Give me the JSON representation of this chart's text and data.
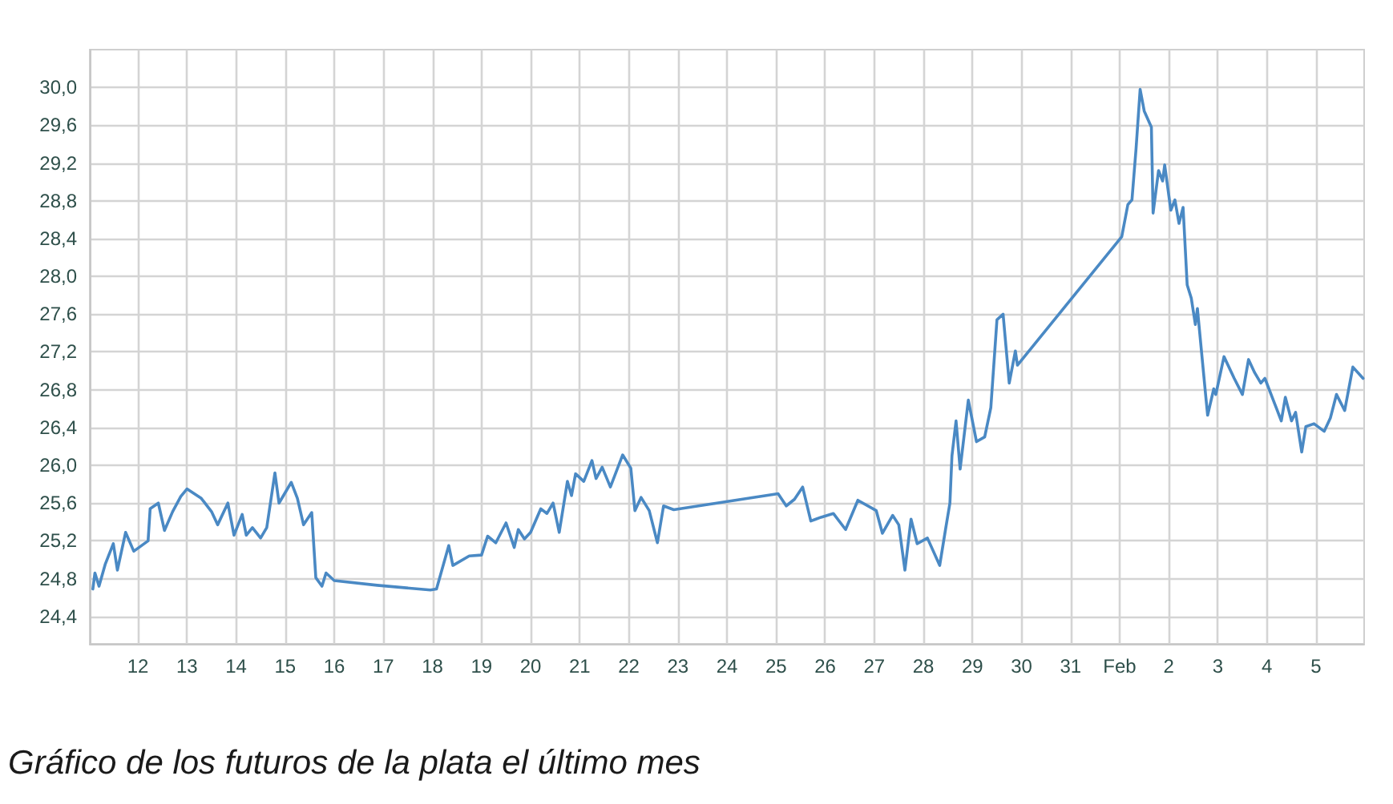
{
  "chart_data": {
    "type": "line",
    "annotations": [
      "Gráfico de los futuros de la plata el último mes"
    ],
    "xlim": [
      "--01-11T00:29",
      "--02-05T23:31"
    ],
    "ylim": [
      24.11,
      30.4
    ],
    "xticks": [
      {
        "value": "--01-12",
        "label": "12"
      },
      {
        "value": "--01-13",
        "label": "13"
      },
      {
        "value": "--01-14",
        "label": "14"
      },
      {
        "value": "--01-15",
        "label": "15"
      },
      {
        "value": "--01-16",
        "label": "16"
      },
      {
        "value": "--01-17",
        "label": "17"
      },
      {
        "value": "--01-18",
        "label": "18"
      },
      {
        "value": "--01-19",
        "label": "19"
      },
      {
        "value": "--01-20",
        "label": "20"
      },
      {
        "value": "--01-21",
        "label": "21"
      },
      {
        "value": "--01-22",
        "label": "22"
      },
      {
        "value": "--01-23",
        "label": "23"
      },
      {
        "value": "--01-24",
        "label": "24"
      },
      {
        "value": "--01-25",
        "label": "25"
      },
      {
        "value": "--01-26",
        "label": "26"
      },
      {
        "value": "--01-27",
        "label": "27"
      },
      {
        "value": "--01-28",
        "label": "28"
      },
      {
        "value": "--01-29",
        "label": "29"
      },
      {
        "value": "--01-30",
        "label": "30"
      },
      {
        "value": "--01-31",
        "label": "31"
      },
      {
        "value": "--02-01",
        "label": "Feb"
      },
      {
        "value": "--02-02",
        "label": "2"
      },
      {
        "value": "--02-03",
        "label": "3"
      },
      {
        "value": "--02-04",
        "label": "4"
      },
      {
        "value": "--02-05",
        "label": "5"
      }
    ],
    "yticks": [
      {
        "value": 24.4,
        "label": "24,4"
      },
      {
        "value": 24.8,
        "label": "24,8"
      },
      {
        "value": 25.2,
        "label": "25,2"
      },
      {
        "value": 25.6,
        "label": "25,6"
      },
      {
        "value": 26.0,
        "label": "26,0"
      },
      {
        "value": 26.4,
        "label": "26,4"
      },
      {
        "value": 26.8,
        "label": "26,8"
      },
      {
        "value": 27.2,
        "label": "27,2"
      },
      {
        "value": 27.6,
        "label": "27,6"
      },
      {
        "value": 28.0,
        "label": "28,0"
      },
      {
        "value": 28.4,
        "label": "28,4"
      },
      {
        "value": 28.8,
        "label": "28,8"
      },
      {
        "value": 29.2,
        "label": "29,2"
      },
      {
        "value": 29.6,
        "label": "29,6"
      },
      {
        "value": 30.0,
        "label": "30,0"
      }
    ],
    "grid": true,
    "marker": "none",
    "line_style": "solid",
    "series": [
      {
        "color": "#4a89c4",
        "x": [
          "--01-11T02:00",
          "--01-11T03:00",
          "--01-11T05:00",
          "--01-11T08:00",
          "--01-11T12:00",
          "--01-11T14:00",
          "--01-11T18:00",
          "--01-11T22:00",
          "--01-12T05:00",
          "--01-12T06:00",
          "--01-12T10:00",
          "--01-12T13:00",
          "--01-12T17:00",
          "--01-12T21:00",
          "--01-13T00:00",
          "--01-13T07:00",
          "--01-13T12:00",
          "--01-13T15:00",
          "--01-13T20:00",
          "--01-13T23:00",
          "--01-14T03:00",
          "--01-14T05:00",
          "--01-14T08:00",
          "--01-14T12:00",
          "--01-14T15:00",
          "--01-14T19:00",
          "--01-14T21:00",
          "--01-15T03:00",
          "--01-15T06:00",
          "--01-15T09:00",
          "--01-15T13:00",
          "--01-15T15:00",
          "--01-15T18:00",
          "--01-15T20:00",
          "--01-16T00:00",
          "--01-16T21:00",
          "--01-17T23:00",
          "--01-18T02:00",
          "--01-18T08:00",
          "--01-18T10:00",
          "--01-18T18:00",
          "--01-19T00:00",
          "--01-19T03:00",
          "--01-19T07:00",
          "--01-19T12:00",
          "--01-19T16:00",
          "--01-19T18:00",
          "--01-19T21:00",
          "--01-20T00:00",
          "--01-20T05:00",
          "--01-20T08:00",
          "--01-20T11:00",
          "--01-20T14:00",
          "--01-20T18:00",
          "--01-20T20:00",
          "--01-20T22:00",
          "--01-21T02:00",
          "--01-21T06:00",
          "--01-21T08:00",
          "--01-21T11:00",
          "--01-21T15:00",
          "--01-21T21:00",
          "--01-22T01:00",
          "--01-22T03:00",
          "--01-22T06:00",
          "--01-22T10:00",
          "--01-22T14:00",
          "--01-22T17:00",
          "--01-22T22:00",
          "--01-25T01:00",
          "--01-25T05:00",
          "--01-25T09:00",
          "--01-25T13:00",
          "--01-25T17:00",
          "--01-25T22:00",
          "--01-26T04:00",
          "--01-26T10:00",
          "--01-26T16:00",
          "--01-27T01:00",
          "--01-27T04:00",
          "--01-27T09:00",
          "--01-27T12:00",
          "--01-27T15:00",
          "--01-27T18:00",
          "--01-27T21:00",
          "--01-28T02:00",
          "--01-28T08:00",
          "--01-28T11:00",
          "--01-28T13:00",
          "--01-28T14:00",
          "--01-28T16:00",
          "--01-28T18:00",
          "--01-28T22:00",
          "--01-29T02:00",
          "--01-29T06:00",
          "--01-29T09:00",
          "--01-29T12:00",
          "--01-29T15:00",
          "--01-29T18:00",
          "--01-29T21:00",
          "--01-29T22:00",
          "--02-01T01:00",
          "--02-01T04:00",
          "--02-01T06:00",
          "--02-01T08:00",
          "--02-01T10:00",
          "--02-01T12:00",
          "--02-01T15:30",
          "--02-01T16:20",
          "--02-01T19:00",
          "--02-01T21:00",
          "--02-01T22:00",
          "--02-02T01:00",
          "--02-02T03:00",
          "--02-02T05:00",
          "--02-02T07:00",
          "--02-02T09:00",
          "--02-02T11:00",
          "--02-02T13:00",
          "--02-02T14:00",
          "--02-02T18:00",
          "--02-02T19:00",
          "--02-02T22:00",
          "--02-02T23:00",
          "--02-03T03:00",
          "--02-03T08:00",
          "--02-03T12:00",
          "--02-03T15:00",
          "--02-03T18:00",
          "--02-03T21:00",
          "--02-03T23:00",
          "--02-04T04:00",
          "--02-04T07:00",
          "--02-04T09:00",
          "--02-04T12:00",
          "--02-04T14:00",
          "--02-04T17:00",
          "--02-04T19:00",
          "--02-04T23:00",
          "--02-05T04:00",
          "--02-05T07:00",
          "--02-05T10:00",
          "--02-05T14:00",
          "--02-05T18:00",
          "--02-05T23:00"
        ],
        "values": [
          24.69,
          24.86,
          24.72,
          24.95,
          25.17,
          24.89,
          25.29,
          25.09,
          25.2,
          25.54,
          25.6,
          25.31,
          25.51,
          25.67,
          25.75,
          25.65,
          25.51,
          25.37,
          25.6,
          25.26,
          25.48,
          25.26,
          25.34,
          25.23,
          25.34,
          25.92,
          25.6,
          25.82,
          25.65,
          25.37,
          25.5,
          24.81,
          24.72,
          24.86,
          24.78,
          24.73,
          24.68,
          24.69,
          25.15,
          24.94,
          25.04,
          25.05,
          25.25,
          25.18,
          25.39,
          25.13,
          25.32,
          25.22,
          25.29,
          25.54,
          25.49,
          25.6,
          25.29,
          25.83,
          25.68,
          25.91,
          25.83,
          26.05,
          25.86,
          25.98,
          25.77,
          26.11,
          25.97,
          25.52,
          25.66,
          25.52,
          25.18,
          25.57,
          25.53,
          25.7,
          25.57,
          25.64,
          25.77,
          25.41,
          25.45,
          25.49,
          25.32,
          25.63,
          25.52,
          25.28,
          25.47,
          25.37,
          24.89,
          25.43,
          25.17,
          25.23,
          24.94,
          25.34,
          25.6,
          26.1,
          26.47,
          25.96,
          26.69,
          26.25,
          26.3,
          26.61,
          27.54,
          27.6,
          26.87,
          27.21,
          27.06,
          28.42,
          28.76,
          28.81,
          29.35,
          29.98,
          29.75,
          29.58,
          28.67,
          29.12,
          29.01,
          29.18,
          28.7,
          28.81,
          28.56,
          28.73,
          27.91,
          27.77,
          27.49,
          27.66,
          26.75,
          26.53,
          26.81,
          26.75,
          27.15,
          26.92,
          26.75,
          27.12,
          26.98,
          26.87,
          26.92,
          26.64,
          26.47,
          26.72,
          26.47,
          26.56,
          26.14,
          26.41,
          26.44,
          26.36,
          26.5,
          26.75,
          26.58,
          27.04,
          26.92
        ]
      }
    ]
  }
}
